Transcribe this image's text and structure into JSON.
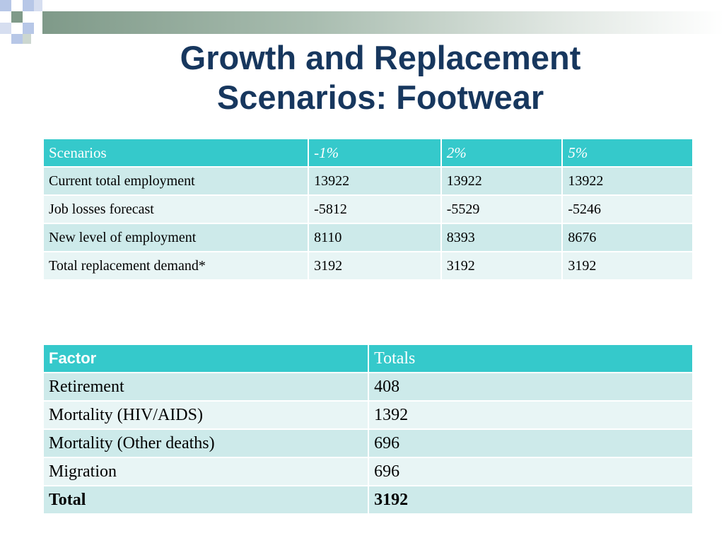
{
  "title": "Growth and Replacement Scenarios:  Footwear",
  "colors": {
    "title": "#17375e",
    "header_bg": "#35c9cb",
    "row_odd": "#cdeaea",
    "row_even": "#e8f5f5",
    "accent_square_dark": "#7f9a89",
    "accent_square_light": "#b7c7e7"
  },
  "scenarios_table": {
    "headers": [
      "Scenarios",
      "-1%",
      "2%",
      "5%"
    ],
    "rows": [
      [
        "Current total employment",
        "13922",
        "13922",
        "13922"
      ],
      [
        "Job losses forecast",
        "-5812",
        "-5529",
        "-5246"
      ],
      [
        "New level of employment",
        "8110",
        "8393",
        "8676"
      ],
      [
        "Total replacement demand*",
        "3192",
        "3192",
        "3192"
      ]
    ]
  },
  "factor_table": {
    "headers": [
      "Factor",
      "Totals"
    ],
    "rows": [
      [
        "Retirement",
        "408"
      ],
      [
        "Mortality (HIV/AIDS)",
        "1392"
      ],
      [
        "Mortality (Other deaths)",
        "696"
      ],
      [
        "Migration",
        "696"
      ],
      [
        "Total",
        "3192"
      ]
    ]
  }
}
